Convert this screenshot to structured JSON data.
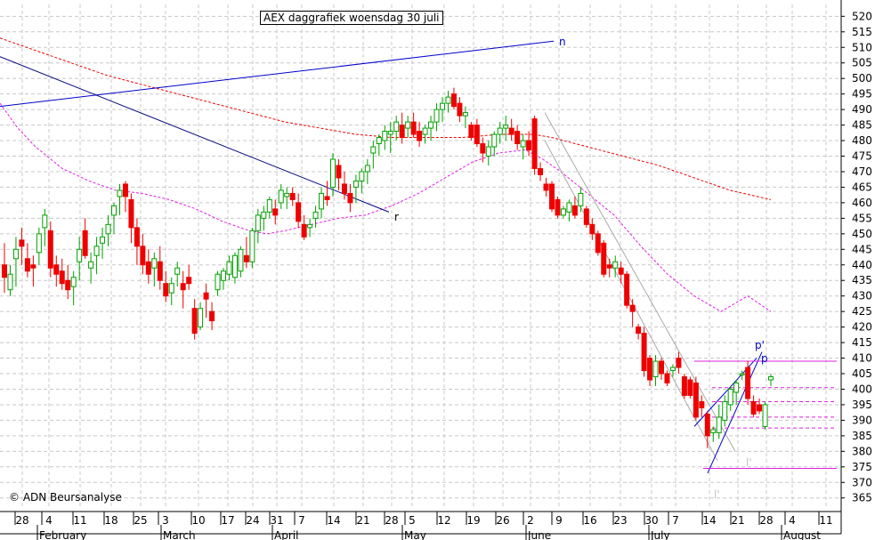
{
  "title": "AEX daggrafiek woensdag 30 juli",
  "copyright": "© ADN Beursanalyse",
  "chart_data": {
    "type": "candlestick",
    "ylim": [
      360,
      524
    ],
    "y_ticks": [
      365,
      370,
      375,
      380,
      385,
      390,
      395,
      400,
      405,
      410,
      415,
      420,
      425,
      430,
      435,
      440,
      445,
      450,
      455,
      460,
      465,
      470,
      475,
      480,
      485,
      490,
      495,
      500,
      505,
      510,
      515,
      520
    ],
    "x_ticks": [
      "28",
      "4",
      "11",
      "18",
      "25",
      "3",
      "10",
      "17",
      "24",
      "31",
      "7",
      "14",
      "21",
      "28",
      "5",
      "12",
      "19",
      "26",
      "2",
      "9",
      "16",
      "23",
      "30",
      "7",
      "14",
      "21",
      "28",
      "4",
      "11"
    ],
    "months": [
      "February",
      "March",
      "April",
      "May",
      "June",
      "July",
      "August"
    ],
    "grid": true,
    "series": [
      {
        "name": "candles",
        "values": [
          {
            "o": 440,
            "h": 447,
            "l": 431,
            "c": 436
          },
          {
            "o": 432,
            "h": 440,
            "l": 430,
            "c": 437
          },
          {
            "o": 442,
            "h": 449,
            "l": 433,
            "c": 445
          },
          {
            "o": 448,
            "h": 452,
            "l": 440,
            "c": 446
          },
          {
            "o": 442,
            "h": 447,
            "l": 436,
            "c": 438
          },
          {
            "o": 440,
            "h": 443,
            "l": 433,
            "c": 439
          },
          {
            "o": 444,
            "h": 452,
            "l": 440,
            "c": 450
          },
          {
            "o": 452,
            "h": 458,
            "l": 446,
            "c": 456
          },
          {
            "o": 451,
            "h": 454,
            "l": 436,
            "c": 439
          },
          {
            "o": 440,
            "h": 443,
            "l": 433,
            "c": 437
          },
          {
            "o": 438,
            "h": 442,
            "l": 432,
            "c": 434
          },
          {
            "o": 435,
            "h": 440,
            "l": 429,
            "c": 432
          },
          {
            "o": 433,
            "h": 438,
            "l": 427,
            "c": 436
          },
          {
            "o": 441,
            "h": 449,
            "l": 435,
            "c": 445
          },
          {
            "o": 451,
            "h": 455,
            "l": 442,
            "c": 443
          },
          {
            "o": 439,
            "h": 444,
            "l": 434,
            "c": 441
          },
          {
            "o": 443,
            "h": 449,
            "l": 437,
            "c": 446
          },
          {
            "o": 447,
            "h": 452,
            "l": 442,
            "c": 449
          },
          {
            "o": 450,
            "h": 456,
            "l": 446,
            "c": 453
          },
          {
            "o": 456,
            "h": 460,
            "l": 450,
            "c": 459
          },
          {
            "o": 462,
            "h": 466,
            "l": 456,
            "c": 464
          },
          {
            "o": 466,
            "h": 467,
            "l": 457,
            "c": 462
          },
          {
            "o": 461,
            "h": 463,
            "l": 447,
            "c": 452
          },
          {
            "o": 452,
            "h": 455,
            "l": 440,
            "c": 446
          },
          {
            "o": 446,
            "h": 450,
            "l": 437,
            "c": 440
          },
          {
            "o": 441,
            "h": 445,
            "l": 434,
            "c": 437
          },
          {
            "o": 439,
            "h": 444,
            "l": 433,
            "c": 442
          },
          {
            "o": 441,
            "h": 446,
            "l": 432,
            "c": 435
          },
          {
            "o": 434,
            "h": 438,
            "l": 428,
            "c": 430
          },
          {
            "o": 431,
            "h": 436,
            "l": 427,
            "c": 434
          },
          {
            "o": 437,
            "h": 441,
            "l": 433,
            "c": 439
          },
          {
            "o": 434,
            "h": 438,
            "l": 426,
            "c": 432
          },
          {
            "o": 436,
            "h": 440,
            "l": 432,
            "c": 434
          },
          {
            "o": 426,
            "h": 429,
            "l": 416,
            "c": 418
          },
          {
            "o": 420,
            "h": 428,
            "l": 419,
            "c": 426
          },
          {
            "o": 431,
            "h": 434,
            "l": 423,
            "c": 429
          },
          {
            "o": 425,
            "h": 428,
            "l": 419,
            "c": 422
          },
          {
            "o": 432,
            "h": 438,
            "l": 430,
            "c": 437
          },
          {
            "o": 435,
            "h": 439,
            "l": 432,
            "c": 438
          },
          {
            "o": 437,
            "h": 443,
            "l": 435,
            "c": 441
          },
          {
            "o": 436,
            "h": 444,
            "l": 434,
            "c": 443
          },
          {
            "o": 438,
            "h": 446,
            "l": 436,
            "c": 445
          },
          {
            "o": 443,
            "h": 449,
            "l": 439,
            "c": 441
          },
          {
            "o": 441,
            "h": 452,
            "l": 439,
            "c": 451
          },
          {
            "o": 451,
            "h": 458,
            "l": 447,
            "c": 456
          },
          {
            "o": 455,
            "h": 459,
            "l": 451,
            "c": 457
          },
          {
            "o": 457,
            "h": 462,
            "l": 455,
            "c": 461
          },
          {
            "o": 458,
            "h": 461,
            "l": 453,
            "c": 456
          },
          {
            "o": 460,
            "h": 466,
            "l": 458,
            "c": 464
          },
          {
            "o": 462,
            "h": 465,
            "l": 458,
            "c": 463
          },
          {
            "o": 463,
            "h": 465,
            "l": 459,
            "c": 461
          },
          {
            "o": 460,
            "h": 463,
            "l": 452,
            "c": 454
          },
          {
            "o": 453,
            "h": 456,
            "l": 448,
            "c": 449
          },
          {
            "o": 452,
            "h": 455,
            "l": 449,
            "c": 453
          },
          {
            "o": 455,
            "h": 459,
            "l": 452,
            "c": 457
          },
          {
            "o": 458,
            "h": 465,
            "l": 455,
            "c": 463
          },
          {
            "o": 462,
            "h": 467,
            "l": 459,
            "c": 461
          },
          {
            "o": 465,
            "h": 476,
            "l": 462,
            "c": 474
          },
          {
            "o": 472,
            "h": 474,
            "l": 464,
            "c": 468
          },
          {
            "o": 466,
            "h": 470,
            "l": 461,
            "c": 463
          },
          {
            "o": 463,
            "h": 466,
            "l": 457,
            "c": 460
          },
          {
            "o": 465,
            "h": 469,
            "l": 460,
            "c": 467
          },
          {
            "o": 467,
            "h": 471,
            "l": 463,
            "c": 470
          },
          {
            "o": 470,
            "h": 474,
            "l": 466,
            "c": 472
          },
          {
            "o": 476,
            "h": 480,
            "l": 471,
            "c": 478
          },
          {
            "o": 479,
            "h": 482,
            "l": 475,
            "c": 481
          },
          {
            "o": 480,
            "h": 485,
            "l": 477,
            "c": 483
          },
          {
            "o": 482,
            "h": 486,
            "l": 476,
            "c": 483
          },
          {
            "o": 483,
            "h": 488,
            "l": 480,
            "c": 486
          },
          {
            "o": 485,
            "h": 489,
            "l": 479,
            "c": 481
          },
          {
            "o": 484,
            "h": 488,
            "l": 481,
            "c": 486
          },
          {
            "o": 486,
            "h": 489,
            "l": 481,
            "c": 482
          },
          {
            "o": 483,
            "h": 486,
            "l": 478,
            "c": 480
          },
          {
            "o": 482,
            "h": 485,
            "l": 479,
            "c": 484
          },
          {
            "o": 484,
            "h": 488,
            "l": 480,
            "c": 486
          },
          {
            "o": 486,
            "h": 492,
            "l": 483,
            "c": 490
          },
          {
            "o": 490,
            "h": 494,
            "l": 486,
            "c": 492
          },
          {
            "o": 492,
            "h": 496,
            "l": 489,
            "c": 494
          },
          {
            "o": 495,
            "h": 497,
            "l": 490,
            "c": 491
          },
          {
            "o": 492,
            "h": 494,
            "l": 486,
            "c": 488
          },
          {
            "o": 488,
            "h": 491,
            "l": 484,
            "c": 489
          },
          {
            "o": 485,
            "h": 486,
            "l": 480,
            "c": 481
          },
          {
            "o": 485,
            "h": 487,
            "l": 478,
            "c": 479
          },
          {
            "o": 479,
            "h": 481,
            "l": 473,
            "c": 476
          },
          {
            "o": 475,
            "h": 480,
            "l": 472,
            "c": 478
          },
          {
            "o": 478,
            "h": 483,
            "l": 475,
            "c": 482
          },
          {
            "o": 482,
            "h": 486,
            "l": 479,
            "c": 484
          },
          {
            "o": 484,
            "h": 488,
            "l": 480,
            "c": 485
          },
          {
            "o": 484,
            "h": 487,
            "l": 480,
            "c": 482
          },
          {
            "o": 483,
            "h": 485,
            "l": 477,
            "c": 479
          },
          {
            "o": 478,
            "h": 482,
            "l": 474,
            "c": 480
          },
          {
            "o": 480,
            "h": 483,
            "l": 475,
            "c": 477
          },
          {
            "o": 487,
            "h": 488,
            "l": 469,
            "c": 471
          },
          {
            "o": 471,
            "h": 473,
            "l": 467,
            "c": 469
          },
          {
            "o": 466,
            "h": 468,
            "l": 462,
            "c": 464
          },
          {
            "o": 466,
            "h": 467,
            "l": 457,
            "c": 458
          },
          {
            "o": 461,
            "h": 462,
            "l": 455,
            "c": 456
          },
          {
            "o": 456,
            "h": 459,
            "l": 455,
            "c": 458
          },
          {
            "o": 457,
            "h": 461,
            "l": 454,
            "c": 460
          },
          {
            "o": 459,
            "h": 462,
            "l": 455,
            "c": 456
          },
          {
            "o": 459,
            "h": 465,
            "l": 457,
            "c": 463
          },
          {
            "o": 458,
            "h": 459,
            "l": 452,
            "c": 453
          },
          {
            "o": 453,
            "h": 455,
            "l": 448,
            "c": 450
          },
          {
            "o": 450,
            "h": 451,
            "l": 443,
            "c": 444
          },
          {
            "o": 447,
            "h": 448,
            "l": 436,
            "c": 437
          },
          {
            "o": 440,
            "h": 442,
            "l": 436,
            "c": 439
          },
          {
            "o": 439,
            "h": 443,
            "l": 436,
            "c": 441
          },
          {
            "o": 439,
            "h": 441,
            "l": 434,
            "c": 437
          },
          {
            "o": 437,
            "h": 438,
            "l": 426,
            "c": 427
          },
          {
            "o": 427,
            "h": 429,
            "l": 420,
            "c": 425
          },
          {
            "o": 420,
            "h": 421,
            "l": 416,
            "c": 418
          },
          {
            "o": 418,
            "h": 420,
            "l": 404,
            "c": 406
          },
          {
            "o": 410,
            "h": 411,
            "l": 401,
            "c": 403
          },
          {
            "o": 404,
            "h": 411,
            "l": 401,
            "c": 409
          },
          {
            "o": 409,
            "h": 410,
            "l": 403,
            "c": 405
          },
          {
            "o": 405,
            "h": 406,
            "l": 401,
            "c": 402
          },
          {
            "o": 406,
            "h": 408,
            "l": 404,
            "c": 407
          },
          {
            "o": 410,
            "h": 412,
            "l": 405,
            "c": 407
          },
          {
            "o": 404,
            "h": 405,
            "l": 397,
            "c": 398
          },
          {
            "o": 403,
            "h": 404,
            "l": 397,
            "c": 398
          },
          {
            "o": 402,
            "h": 404,
            "l": 390,
            "c": 391
          },
          {
            "o": 396,
            "h": 398,
            "l": 391,
            "c": 394
          },
          {
            "o": 392,
            "h": 393,
            "l": 381,
            "c": 385
          },
          {
            "o": 386,
            "h": 388,
            "l": 383,
            "c": 387
          },
          {
            "o": 386,
            "h": 395,
            "l": 384,
            "c": 391
          },
          {
            "o": 390,
            "h": 398,
            "l": 388,
            "c": 396
          },
          {
            "o": 395,
            "h": 401,
            "l": 393,
            "c": 400
          },
          {
            "o": 399,
            "h": 403,
            "l": 395,
            "c": 402
          },
          {
            "o": 405,
            "h": 406,
            "l": 403,
            "c": 405
          },
          {
            "o": 407,
            "h": 409,
            "l": 395,
            "c": 397
          },
          {
            "o": 396,
            "h": 398,
            "l": 391,
            "c": 392
          },
          {
            "o": 395,
            "h": 397,
            "l": 392,
            "c": 393
          },
          {
            "o": 388,
            "h": 396,
            "l": 387,
            "c": 395
          },
          {
            "o": 403,
            "h": 405,
            "l": 401,
            "c": 404
          }
        ]
      }
    ],
    "annotations": [
      "n",
      "r",
      "p'",
      "p",
      "l'",
      "l'"
    ]
  }
}
